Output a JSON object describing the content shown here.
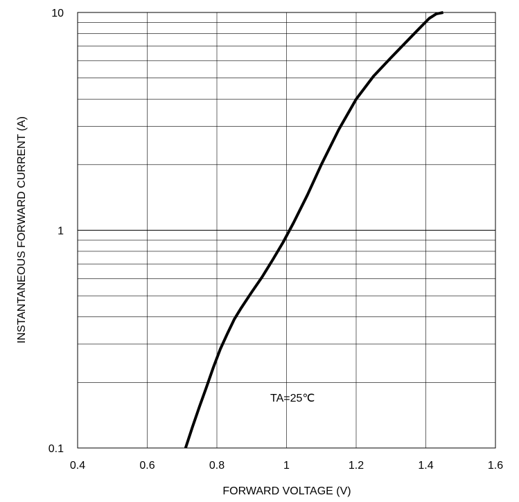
{
  "chart_data": {
    "type": "line",
    "title": "",
    "xlabel": "FORWARD VOLTAGE (V)",
    "ylabel": "INSTANTANEOUS FORWARD CURRENT (A)",
    "xlim": [
      0.4,
      1.6
    ],
    "ylim": [
      0.1,
      10
    ],
    "y_scale": "log",
    "x_ticks": [
      "0.4",
      "0.6",
      "0.8",
      "1",
      "1.2",
      "1.4",
      "1.6"
    ],
    "y_ticks": [
      "0.1",
      "1",
      "10"
    ],
    "grid": true,
    "legend": "none",
    "annotation": "TA=25℃",
    "line_color": "#000000",
    "series": [
      {
        "x": [
          0.71,
          0.73,
          0.75,
          0.77,
          0.79,
          0.81,
          0.83,
          0.85,
          0.87,
          0.9,
          0.93,
          0.96,
          0.99,
          1.02,
          1.06,
          1.1,
          1.15,
          1.2,
          1.25,
          1.3,
          1.35,
          1.38,
          1.41,
          1.43,
          1.45
        ],
        "y": [
          0.1,
          0.125,
          0.155,
          0.19,
          0.235,
          0.285,
          0.335,
          0.39,
          0.44,
          0.52,
          0.61,
          0.73,
          0.88,
          1.08,
          1.45,
          2.0,
          2.9,
          4.0,
          5.1,
          6.2,
          7.5,
          8.4,
          9.4,
          9.85,
          10
        ]
      }
    ]
  }
}
